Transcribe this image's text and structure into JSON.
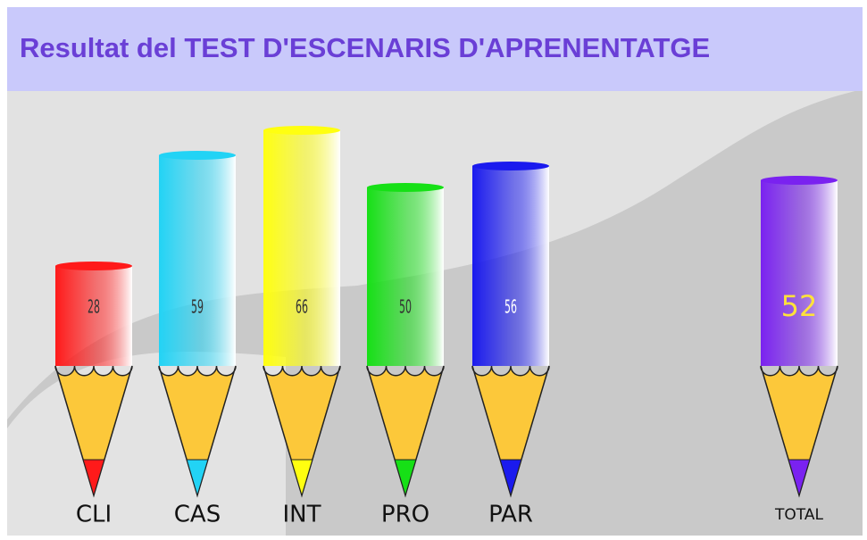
{
  "chart_data": {
    "type": "bar",
    "title": "Resultat del TEST D'ESCENARIS D'APRENENTATGE",
    "categories": [
      "CLI",
      "CAS",
      "INT",
      "PRO",
      "PAR"
    ],
    "values": [
      28,
      59,
      66,
      50,
      56
    ],
    "colors": [
      "#ff1a1a",
      "#22d3f5",
      "#ffff10",
      "#16e016",
      "#1a1aee"
    ],
    "total": {
      "label": "TOTAL",
      "value": 52,
      "color": "#7a22f0"
    }
  }
}
